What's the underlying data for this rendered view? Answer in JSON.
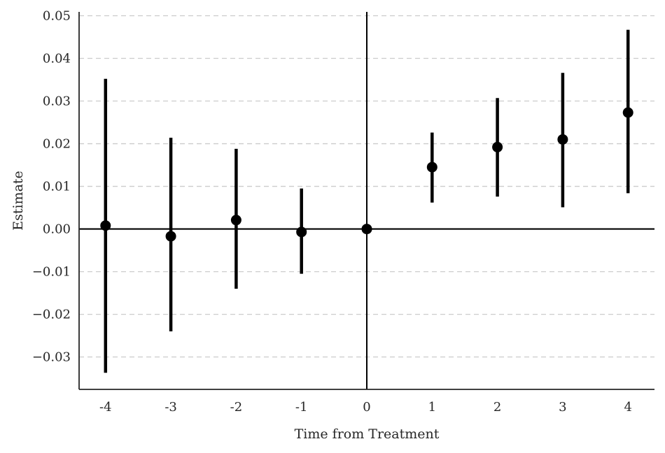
{
  "chart_data": {
    "type": "scatter",
    "subtype": "event-study-coefficient-plot",
    "title": "",
    "xlabel": "Time from Treatment",
    "ylabel": "Estimate",
    "x": [
      -4,
      -3,
      -2,
      -1,
      0,
      1,
      2,
      3,
      4
    ],
    "x_tick_labels": [
      "-4",
      "-3",
      "-2",
      "-1",
      "0",
      "1",
      "2",
      "3",
      "4"
    ],
    "y_ticks": [
      0.05,
      0.04,
      0.03,
      0.02,
      0.01,
      0.0,
      -0.01,
      -0.02,
      -0.03
    ],
    "y_tick_labels": [
      "0.05",
      "0.04",
      "0.03",
      "0.02",
      "0.01",
      "0.00",
      "−0.01",
      "−0.02",
      "−0.03"
    ],
    "series": [
      {
        "name": "estimate-with-95ci",
        "points": [
          {
            "x": -4,
            "y": 0.0008,
            "lo": -0.0337,
            "hi": 0.0352
          },
          {
            "x": -3,
            "y": -0.0017,
            "lo": -0.024,
            "hi": 0.0214
          },
          {
            "x": -2,
            "y": 0.0021,
            "lo": -0.014,
            "hi": 0.0188
          },
          {
            "x": -1,
            "y": -0.0007,
            "lo": -0.0105,
            "hi": 0.0095
          },
          {
            "x": 0,
            "y": 0.0,
            "lo": 0.0,
            "hi": 0.0
          },
          {
            "x": 1,
            "y": 0.0145,
            "lo": 0.0062,
            "hi": 0.0226
          },
          {
            "x": 2,
            "y": 0.0192,
            "lo": 0.0076,
            "hi": 0.0307
          },
          {
            "x": 3,
            "y": 0.021,
            "lo": 0.0051,
            "hi": 0.0366
          },
          {
            "x": 4,
            "y": 0.0273,
            "lo": 0.0084,
            "hi": 0.0467
          }
        ]
      }
    ],
    "xlim": [
      -4.405,
      4.405
    ],
    "ylim": [
      -0.0376,
      0.0509
    ],
    "reference_lines": {
      "vline_x": 0,
      "hline_y": 0
    },
    "grid": "horizontal-dashed",
    "legend": "none",
    "colors": {
      "marker": "#000000",
      "error_bar": "#000000",
      "reference_line": "#000000",
      "grid": "#cccccc",
      "spine": "#262626",
      "tick_label": "#262626",
      "background": "#ffffff"
    }
  }
}
